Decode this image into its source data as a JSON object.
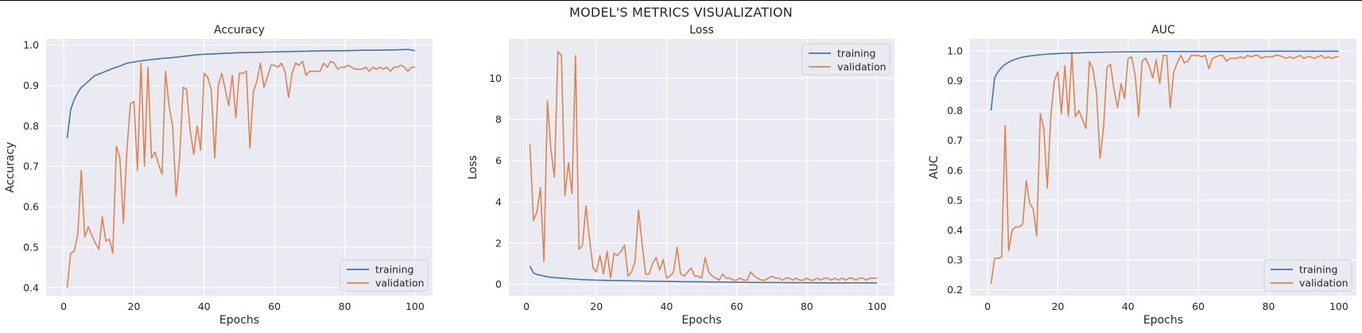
{
  "suptitle": "MODEL'S METRICS VISUALIZATION",
  "style": {
    "plot_bg": "#eaeaf2",
    "grid": "#ffffff",
    "training_color": "#4c72b0",
    "validation_color": "#dd8452"
  },
  "chart_data": [
    {
      "type": "line",
      "title": "Accuracy",
      "xlabel": "Epochs",
      "ylabel": "Accuracy",
      "xlim": [
        -5,
        105
      ],
      "ylim": [
        0.38,
        1.015
      ],
      "xticks": [
        0,
        20,
        40,
        60,
        80,
        100
      ],
      "yticks": [
        0.4,
        0.5,
        0.6,
        0.7,
        0.8,
        0.9,
        1.0
      ],
      "ytick_labels": [
        "0.4",
        "0.5",
        "0.6",
        "0.7",
        "0.8",
        "0.9",
        "1.0"
      ],
      "grid": true,
      "legend_position": "lower right",
      "series": [
        {
          "name": "training",
          "x": [
            1,
            2,
            3,
            4,
            5,
            6,
            7,
            8,
            9,
            10,
            12,
            14,
            16,
            18,
            20,
            22,
            24,
            26,
            28,
            30,
            32,
            34,
            36,
            38,
            40,
            45,
            50,
            55,
            60,
            65,
            70,
            75,
            80,
            85,
            90,
            95,
            98,
            100
          ],
          "y": [
            0.77,
            0.84,
            0.865,
            0.882,
            0.895,
            0.902,
            0.91,
            0.918,
            0.925,
            0.928,
            0.935,
            0.942,
            0.948,
            0.955,
            0.958,
            0.961,
            0.963,
            0.965,
            0.967,
            0.968,
            0.97,
            0.972,
            0.974,
            0.976,
            0.977,
            0.979,
            0.981,
            0.982,
            0.983,
            0.984,
            0.985,
            0.986,
            0.986,
            0.987,
            0.987,
            0.988,
            0.989,
            0.986
          ]
        },
        {
          "name": "validation",
          "x": [
            1,
            2,
            3,
            4,
            5,
            6,
            7,
            8,
            9,
            10,
            11,
            12,
            13,
            14,
            15,
            16,
            17,
            18,
            19,
            20,
            21,
            22,
            23,
            24,
            25,
            26,
            27,
            28,
            29,
            30,
            31,
            32,
            33,
            34,
            35,
            36,
            37,
            38,
            39,
            40,
            41,
            42,
            43,
            44,
            45,
            46,
            47,
            48,
            49,
            50,
            51,
            52,
            53,
            54,
            55,
            56,
            57,
            58,
            59,
            60,
            61,
            62,
            63,
            64,
            65,
            66,
            67,
            68,
            69,
            70,
            71,
            72,
            73,
            74,
            75,
            76,
            77,
            78,
            79,
            80,
            81,
            82,
            83,
            84,
            85,
            86,
            87,
            88,
            89,
            90,
            91,
            92,
            93,
            94,
            95,
            96,
            97,
            98,
            99,
            100
          ],
          "y": [
            0.4,
            0.485,
            0.49,
            0.53,
            0.69,
            0.525,
            0.55,
            0.53,
            0.51,
            0.495,
            0.575,
            0.515,
            0.52,
            0.485,
            0.75,
            0.72,
            0.56,
            0.74,
            0.855,
            0.86,
            0.69,
            0.955,
            0.7,
            0.945,
            0.72,
            0.735,
            0.705,
            0.68,
            0.935,
            0.85,
            0.8,
            0.625,
            0.72,
            0.895,
            0.89,
            0.79,
            0.73,
            0.8,
            0.74,
            0.93,
            0.92,
            0.89,
            0.72,
            0.9,
            0.93,
            0.89,
            0.85,
            0.925,
            0.82,
            0.93,
            0.93,
            0.935,
            0.745,
            0.885,
            0.91,
            0.955,
            0.895,
            0.92,
            0.95,
            0.95,
            0.945,
            0.955,
            0.935,
            0.87,
            0.93,
            0.955,
            0.95,
            0.96,
            0.925,
            0.935,
            0.935,
            0.935,
            0.935,
            0.955,
            0.945,
            0.96,
            0.955,
            0.94,
            0.945,
            0.945,
            0.95,
            0.945,
            0.94,
            0.94,
            0.94,
            0.945,
            0.935,
            0.945,
            0.94,
            0.945,
            0.94,
            0.945,
            0.935,
            0.945,
            0.945,
            0.95,
            0.945,
            0.935,
            0.945,
            0.945
          ]
        }
      ]
    },
    {
      "type": "line",
      "title": "Loss",
      "xlabel": "Epochs",
      "ylabel": "Loss",
      "xlim": [
        -5,
        105
      ],
      "ylim": [
        -0.55,
        11.9
      ],
      "xticks": [
        0,
        20,
        40,
        60,
        80,
        100
      ],
      "yticks": [
        0,
        2,
        4,
        6,
        8,
        10
      ],
      "ytick_labels": [
        "0",
        "2",
        "4",
        "6",
        "8",
        "10"
      ],
      "grid": true,
      "legend_position": "upper right",
      "series": [
        {
          "name": "training",
          "x": [
            1,
            2,
            3,
            5,
            7,
            10,
            13,
            16,
            20,
            25,
            30,
            35,
            40,
            45,
            50,
            55,
            60,
            65,
            70,
            75,
            80,
            85,
            90,
            95,
            100
          ],
          "y": [
            0.88,
            0.55,
            0.48,
            0.4,
            0.34,
            0.3,
            0.26,
            0.23,
            0.2,
            0.18,
            0.17,
            0.15,
            0.14,
            0.13,
            0.12,
            0.11,
            0.1,
            0.09,
            0.09,
            0.08,
            0.08,
            0.07,
            0.07,
            0.07,
            0.07
          ]
        },
        {
          "name": "validation",
          "x": [
            1,
            2,
            3,
            4,
            5,
            6,
            7,
            8,
            9,
            10,
            11,
            12,
            13,
            14,
            15,
            16,
            17,
            18,
            19,
            20,
            21,
            22,
            23,
            24,
            25,
            26,
            27,
            28,
            29,
            30,
            31,
            32,
            33,
            34,
            35,
            36,
            37,
            38,
            39,
            40,
            41,
            42,
            43,
            44,
            45,
            46,
            47,
            48,
            49,
            50,
            51,
            52,
            53,
            54,
            55,
            56,
            57,
            58,
            59,
            60,
            61,
            62,
            63,
            64,
            65,
            66,
            67,
            68,
            69,
            70,
            71,
            72,
            73,
            74,
            75,
            76,
            77,
            78,
            79,
            80,
            81,
            82,
            83,
            84,
            85,
            86,
            87,
            88,
            89,
            90,
            91,
            92,
            93,
            94,
            95,
            96,
            97,
            98,
            99,
            100
          ],
          "y": [
            6.8,
            3.1,
            3.5,
            4.7,
            1.1,
            8.9,
            6.5,
            5.2,
            11.3,
            11.1,
            4.3,
            5.9,
            4.4,
            11.1,
            1.7,
            1.9,
            3.8,
            2.2,
            0.8,
            0.6,
            1.4,
            0.5,
            1.6,
            0.3,
            1.5,
            1.4,
            1.6,
            1.9,
            0.4,
            0.6,
            1.1,
            3.6,
            2.0,
            0.5,
            0.5,
            1.0,
            1.3,
            0.7,
            1.2,
            0.3,
            0.4,
            0.6,
            1.8,
            0.5,
            0.4,
            0.6,
            0.8,
            0.4,
            0.4,
            0.3,
            1.3,
            0.6,
            0.4,
            0.3,
            0.2,
            0.5,
            0.3,
            0.3,
            0.2,
            0.2,
            0.3,
            0.2,
            0.2,
            0.6,
            0.4,
            0.3,
            0.2,
            0.2,
            0.3,
            0.4,
            0.3,
            0.3,
            0.2,
            0.3,
            0.3,
            0.2,
            0.3,
            0.2,
            0.2,
            0.3,
            0.2,
            0.2,
            0.3,
            0.2,
            0.3,
            0.3,
            0.2,
            0.3,
            0.2,
            0.3,
            0.2,
            0.3,
            0.3,
            0.2,
            0.3,
            0.3,
            0.2,
            0.3,
            0.3,
            0.3
          ]
        }
      ]
    },
    {
      "type": "line",
      "title": "AUC",
      "xlabel": "Epochs",
      "ylabel": "AUC",
      "xlim": [
        -5,
        105
      ],
      "ylim": [
        0.18,
        1.04
      ],
      "xticks": [
        0,
        20,
        40,
        60,
        80,
        100
      ],
      "yticks": [
        0.2,
        0.3,
        0.4,
        0.5,
        0.6,
        0.7,
        0.8,
        0.9,
        1.0
      ],
      "ytick_labels": [
        "0.2",
        "0.3",
        "0.4",
        "0.5",
        "0.6",
        "0.7",
        "0.8",
        "0.9",
        "1.0"
      ],
      "grid": true,
      "legend_position": "lower right",
      "series": [
        {
          "name": "training",
          "x": [
            1,
            2,
            3,
            4,
            5,
            6,
            7,
            8,
            9,
            10,
            12,
            14,
            16,
            18,
            20,
            22,
            25,
            30,
            35,
            40,
            45,
            50,
            60,
            70,
            80,
            90,
            100
          ],
          "y": [
            0.8,
            0.91,
            0.93,
            0.945,
            0.955,
            0.962,
            0.968,
            0.972,
            0.976,
            0.979,
            0.983,
            0.986,
            0.988,
            0.99,
            0.991,
            0.992,
            0.993,
            0.995,
            0.996,
            0.997,
            0.997,
            0.998,
            0.998,
            0.998,
            0.999,
            0.999,
            0.999
          ]
        },
        {
          "name": "validation",
          "x": [
            1,
            2,
            3,
            4,
            5,
            6,
            7,
            8,
            9,
            10,
            11,
            12,
            13,
            14,
            15,
            16,
            17,
            18,
            19,
            20,
            21,
            22,
            23,
            24,
            25,
            26,
            27,
            28,
            29,
            30,
            31,
            32,
            33,
            34,
            35,
            36,
            37,
            38,
            39,
            40,
            41,
            42,
            43,
            44,
            45,
            46,
            47,
            48,
            49,
            50,
            51,
            52,
            53,
            54,
            55,
            56,
            57,
            58,
            59,
            60,
            61,
            62,
            63,
            64,
            65,
            66,
            67,
            68,
            69,
            70,
            71,
            72,
            73,
            74,
            75,
            76,
            77,
            78,
            79,
            80,
            81,
            82,
            83,
            84,
            85,
            86,
            87,
            88,
            89,
            90,
            91,
            92,
            93,
            94,
            95,
            96,
            97,
            98,
            99,
            100
          ],
          "y": [
            0.22,
            0.305,
            0.305,
            0.31,
            0.75,
            0.33,
            0.4,
            0.41,
            0.41,
            0.42,
            0.565,
            0.49,
            0.47,
            0.38,
            0.79,
            0.74,
            0.54,
            0.78,
            0.9,
            0.93,
            0.79,
            0.95,
            0.78,
            0.995,
            0.78,
            0.8,
            0.77,
            0.74,
            0.965,
            0.94,
            0.86,
            0.64,
            0.74,
            0.945,
            0.955,
            0.87,
            0.81,
            0.89,
            0.84,
            0.975,
            0.98,
            0.92,
            0.78,
            0.965,
            0.975,
            0.95,
            0.91,
            0.97,
            0.89,
            0.985,
            0.985,
            0.81,
            0.93,
            0.96,
            0.985,
            0.96,
            0.965,
            0.985,
            0.985,
            0.985,
            0.98,
            0.985,
            0.94,
            0.975,
            0.98,
            0.985,
            0.985,
            0.965,
            0.975,
            0.975,
            0.975,
            0.98,
            0.975,
            0.985,
            0.98,
            0.985,
            0.985,
            0.975,
            0.98,
            0.98,
            0.98,
            0.985,
            0.985,
            0.98,
            0.975,
            0.98,
            0.975,
            0.98,
            0.985,
            0.975,
            0.98,
            0.98,
            0.975,
            0.98,
            0.985,
            0.975,
            0.98,
            0.975,
            0.98,
            0.98
          ]
        }
      ]
    }
  ]
}
